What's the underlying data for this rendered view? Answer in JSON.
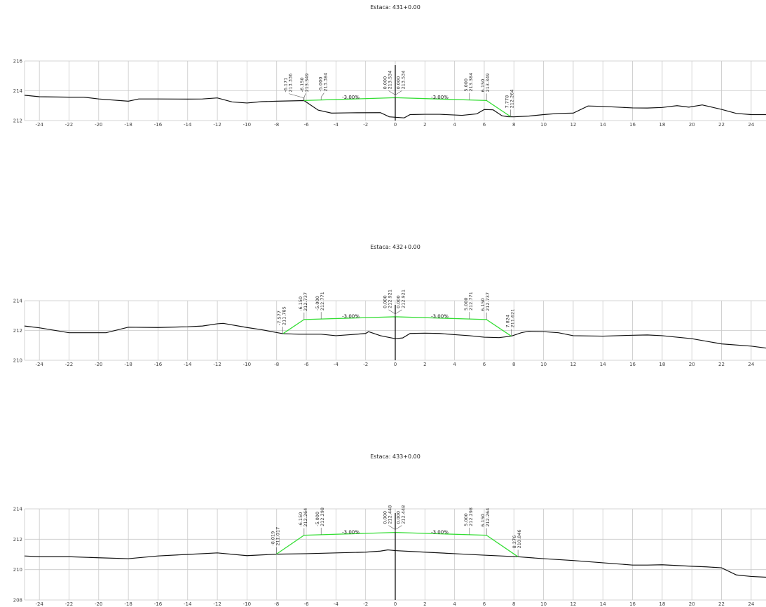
{
  "colors": {
    "grid": "#c8c8c8",
    "ground": "#111111",
    "design": "#33dd33",
    "axis": "#000000"
  },
  "sections": [
    {
      "title": "Estaca: 431+0.00",
      "x_range": [
        -25,
        25
      ],
      "y_range": [
        212,
        216
      ],
      "y_ticks": [
        212,
        214,
        216
      ],
      "x_ticks": [
        -24,
        -22,
        -20,
        -18,
        -16,
        -14,
        -12,
        -10,
        -8,
        -6,
        -4,
        -2,
        0,
        2,
        4,
        6,
        8,
        10,
        12,
        14,
        16,
        18,
        20,
        22,
        24
      ],
      "ground": [
        [
          -25,
          213.7
        ],
        [
          -24,
          213.6
        ],
        [
          -22,
          213.57
        ],
        [
          -21,
          213.57
        ],
        [
          -20,
          213.45
        ],
        [
          -18,
          213.3
        ],
        [
          -17.3,
          213.45
        ],
        [
          -16,
          213.45
        ],
        [
          -14,
          213.44
        ],
        [
          -13,
          213.45
        ],
        [
          -12,
          213.52
        ],
        [
          -11,
          213.25
        ],
        [
          -10,
          213.18
        ],
        [
          -9,
          213.27
        ],
        [
          -8,
          213.3
        ],
        [
          -6.15,
          213.34
        ],
        [
          -5.2,
          212.7
        ],
        [
          -4.3,
          212.5
        ],
        [
          -3,
          212.52
        ],
        [
          -1,
          212.53
        ],
        [
          -0.4,
          212.25
        ],
        [
          0.6,
          212.18
        ],
        [
          1,
          212.4
        ],
        [
          2,
          212.42
        ],
        [
          3,
          212.42
        ],
        [
          4.5,
          212.35
        ],
        [
          5.5,
          212.45
        ],
        [
          6,
          212.74
        ],
        [
          6.6,
          212.72
        ],
        [
          7.2,
          212.32
        ],
        [
          7.6,
          212.26
        ],
        [
          8,
          212.25
        ],
        [
          9,
          212.3
        ],
        [
          10,
          212.4
        ],
        [
          11,
          212.48
        ],
        [
          12,
          212.5
        ],
        [
          13,
          212.98
        ],
        [
          14,
          212.95
        ],
        [
          16,
          212.85
        ],
        [
          17,
          212.84
        ],
        [
          18,
          212.88
        ],
        [
          19,
          213.0
        ],
        [
          19.8,
          212.9
        ],
        [
          20.7,
          213.05
        ],
        [
          22,
          212.75
        ],
        [
          23,
          212.48
        ],
        [
          24,
          212.4
        ],
        [
          25,
          212.4
        ]
      ],
      "design": [
        [
          -6.171,
          213.336
        ],
        [
          -6.15,
          213.349
        ],
        [
          -5.0,
          213.384
        ],
        [
          0.0,
          213.534
        ],
        [
          5.0,
          213.384
        ],
        [
          6.15,
          213.349
        ],
        [
          7.778,
          212.264
        ]
      ],
      "labels": [
        {
          "x": -6.171,
          "off": -1.0,
          "station": "-6.171",
          "elev": "213.336"
        },
        {
          "x": -6.15,
          "off": 0.1,
          "station": "-6.150",
          "elev": "213.349"
        },
        {
          "x": -5.0,
          "off": 0.2,
          "station": "-5.000",
          "elev": "213.384"
        },
        {
          "x": 0.0,
          "off": -0.45,
          "station": "0.000",
          "elev": "213.534"
        },
        {
          "x": 0.0,
          "off": 0.45,
          "station": "0.000",
          "elev": "213.534"
        },
        {
          "x": 5.0,
          "off": 0.0,
          "station": "5.000",
          "elev": "213.384"
        },
        {
          "x": 6.15,
          "off": 0.0,
          "station": "6.150",
          "elev": "213.349"
        },
        {
          "x": 7.778,
          "off": 0.0,
          "station": "7.778",
          "elev": "212.264"
        }
      ],
      "slopes": [
        {
          "x": -3.0,
          "y": 213.46,
          "text": "-3.00%"
        },
        {
          "x": 3.0,
          "y": 213.46,
          "text": "-3.00%"
        }
      ]
    },
    {
      "title": "Estaca: 432+0.00",
      "x_range": [
        -25,
        25
      ],
      "y_range": [
        210,
        214
      ],
      "y_ticks": [
        210,
        212,
        214
      ],
      "x_ticks": [
        -24,
        -22,
        -20,
        -18,
        -16,
        -14,
        -12,
        -10,
        -8,
        -6,
        -4,
        -2,
        0,
        2,
        4,
        6,
        8,
        10,
        12,
        14,
        16,
        18,
        20,
        22,
        24
      ],
      "ground": [
        [
          -25,
          212.3
        ],
        [
          -24,
          212.18
        ],
        [
          -22,
          211.85
        ],
        [
          -21,
          211.85
        ],
        [
          -20,
          211.85
        ],
        [
          -19.5,
          211.85
        ],
        [
          -18,
          212.22
        ],
        [
          -16,
          212.2
        ],
        [
          -14,
          212.25
        ],
        [
          -13,
          212.3
        ],
        [
          -12,
          212.45
        ],
        [
          -11.6,
          212.48
        ],
        [
          -10,
          212.2
        ],
        [
          -9,
          212.05
        ],
        [
          -7.577,
          211.785
        ],
        [
          -6.5,
          211.75
        ],
        [
          -5,
          211.75
        ],
        [
          -4,
          211.65
        ],
        [
          -3,
          211.72
        ],
        [
          -2,
          211.8
        ],
        [
          -1.8,
          211.92
        ],
        [
          -1,
          211.65
        ],
        [
          0,
          211.45
        ],
        [
          0.5,
          211.5
        ],
        [
          1,
          211.8
        ],
        [
          2,
          211.82
        ],
        [
          3,
          211.8
        ],
        [
          4,
          211.72
        ],
        [
          5,
          211.65
        ],
        [
          6,
          211.55
        ],
        [
          7,
          211.52
        ],
        [
          7.824,
          211.621
        ],
        [
          8.5,
          211.85
        ],
        [
          9,
          211.95
        ],
        [
          10,
          211.92
        ],
        [
          11,
          211.85
        ],
        [
          12,
          211.65
        ],
        [
          14,
          211.62
        ],
        [
          16,
          211.68
        ],
        [
          17,
          211.7
        ],
        [
          18,
          211.65
        ],
        [
          20,
          211.45
        ],
        [
          22,
          211.1
        ],
        [
          24,
          210.95
        ],
        [
          25,
          210.82
        ]
      ],
      "design": [
        [
          -7.577,
          211.785
        ],
        [
          -6.15,
          212.737
        ],
        [
          -5.0,
          212.771
        ],
        [
          0.0,
          212.921
        ],
        [
          5.0,
          212.771
        ],
        [
          6.15,
          212.737
        ],
        [
          7.824,
          211.621
        ]
      ],
      "labels": [
        {
          "x": -7.577,
          "off": 0.0,
          "station": "-7.577",
          "elev": "211.785"
        },
        {
          "x": -6.15,
          "off": 0.0,
          "station": "-6.150",
          "elev": "212.737"
        },
        {
          "x": -5.0,
          "off": 0.0,
          "station": "-5.000",
          "elev": "212.771"
        },
        {
          "x": 0.0,
          "off": -0.45,
          "station": "0.000",
          "elev": "212.921"
        },
        {
          "x": 0.0,
          "off": 0.45,
          "station": "0.000",
          "elev": "212.921"
        },
        {
          "x": 5.0,
          "off": 0.0,
          "station": "5.000",
          "elev": "212.771"
        },
        {
          "x": 6.15,
          "off": 0.0,
          "station": "6.150",
          "elev": "212.737"
        },
        {
          "x": 7.824,
          "off": 0.0,
          "station": "7.824",
          "elev": "211.621"
        }
      ],
      "slopes": [
        {
          "x": -3.0,
          "y": 212.85,
          "text": "-3.00%"
        },
        {
          "x": 3.0,
          "y": 212.85,
          "text": "-3.00%"
        }
      ]
    },
    {
      "title": "Estaca: 433+0.00",
      "x_range": [
        -25,
        25
      ],
      "y_range": [
        208,
        214
      ],
      "y_ticks": [
        208,
        210,
        212,
        214
      ],
      "x_ticks": [
        -24,
        -22,
        -20,
        -18,
        -16,
        -14,
        -12,
        -10,
        -8,
        -6,
        -4,
        -2,
        0,
        2,
        4,
        6,
        8,
        10,
        12,
        14,
        16,
        18,
        20,
        22,
        24
      ],
      "ground": [
        [
          -25,
          210.9
        ],
        [
          -24,
          210.85
        ],
        [
          -22,
          210.85
        ],
        [
          -20,
          210.78
        ],
        [
          -18,
          210.72
        ],
        [
          -16,
          210.9
        ],
        [
          -14,
          211.0
        ],
        [
          -12,
          211.1
        ],
        [
          -10,
          210.92
        ],
        [
          -8.019,
          211.017
        ],
        [
          -6,
          211.05
        ],
        [
          -4,
          211.1
        ],
        [
          -2,
          211.15
        ],
        [
          -1,
          211.22
        ],
        [
          -0.5,
          211.3
        ],
        [
          0,
          211.25
        ],
        [
          2,
          211.15
        ],
        [
          4,
          211.05
        ],
        [
          6,
          210.95
        ],
        [
          8.276,
          210.846
        ],
        [
          10,
          210.72
        ],
        [
          12,
          210.6
        ],
        [
          14,
          210.45
        ],
        [
          16,
          210.3
        ],
        [
          17,
          210.3
        ],
        [
          18,
          210.32
        ],
        [
          20,
          210.22
        ],
        [
          21,
          210.18
        ],
        [
          22,
          210.12
        ],
        [
          23,
          209.65
        ],
        [
          24,
          209.55
        ],
        [
          25,
          209.5
        ]
      ],
      "design": [
        [
          -8.019,
          211.017
        ],
        [
          -6.15,
          212.264
        ],
        [
          -5.0,
          212.298
        ],
        [
          0.0,
          212.448
        ],
        [
          5.0,
          212.298
        ],
        [
          6.15,
          212.264
        ],
        [
          8.276,
          210.846
        ]
      ],
      "labels": [
        {
          "x": -8.019,
          "off": 0.0,
          "station": "-8.019",
          "elev": "211.017"
        },
        {
          "x": -6.15,
          "off": 0.0,
          "station": "-6.150",
          "elev": "212.264"
        },
        {
          "x": -5.0,
          "off": 0.0,
          "station": "-5.000",
          "elev": "212.298"
        },
        {
          "x": 0.0,
          "off": -0.45,
          "station": "0.000",
          "elev": "212.448"
        },
        {
          "x": 0.0,
          "off": 0.45,
          "station": "0.000",
          "elev": "212.448"
        },
        {
          "x": 5.0,
          "off": 0.0,
          "station": "5.000",
          "elev": "212.298"
        },
        {
          "x": 6.15,
          "off": 0.0,
          "station": "6.150",
          "elev": "212.264"
        },
        {
          "x": 8.276,
          "off": 0.0,
          "station": "8.276",
          "elev": "210.846"
        }
      ],
      "slopes": [
        {
          "x": -3.0,
          "y": 212.37,
          "text": "-3.00%"
        },
        {
          "x": 3.0,
          "y": 212.37,
          "text": "-3.00%"
        }
      ]
    }
  ]
}
